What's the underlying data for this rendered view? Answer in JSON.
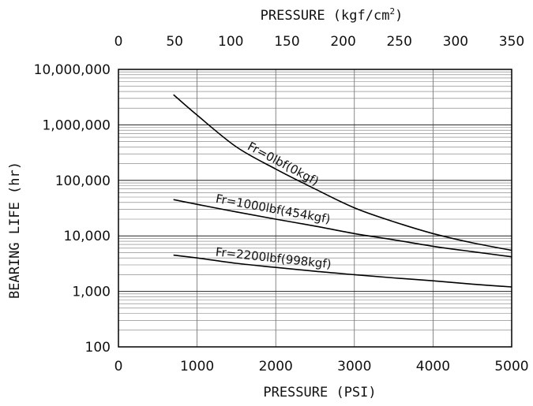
{
  "chart_data": {
    "type": "line",
    "xlabel": "PRESSURE (PSI)",
    "ylabel": "BEARING LIFE (hr)",
    "secondary_x_label": "PRESSURE (kgf/cm",
    "secondary_x_label_sup": "2",
    "secondary_x_label_close": ")",
    "xlim": [
      0,
      5000
    ],
    "ylim": [
      100,
      10000000
    ],
    "y_scale": "log",
    "grid": true,
    "x_ticks": [
      "0",
      "1000",
      "2000",
      "3000",
      "4000",
      "5000"
    ],
    "y_ticks": [
      "100",
      "1,000",
      "10,000",
      "100,000",
      "1,000,000",
      "10,000,000"
    ],
    "secondary_x_ticks": [
      "0",
      "50",
      "100",
      "150",
      "200",
      "250",
      "300",
      "350"
    ],
    "series": [
      {
        "name": "Fr=0lbf(0kgf)",
        "x": [
          700,
          1000,
          1500,
          2000,
          2500,
          3000,
          3500,
          4000,
          4500,
          5000
        ],
        "y": [
          3500000,
          1500000,
          400000,
          160000,
          70000,
          32000,
          18000,
          11000,
          7500,
          5500
        ]
      },
      {
        "name": "Fr=1000lbf(454kgf)",
        "x": [
          700,
          1000,
          1500,
          2000,
          2500,
          3000,
          3500,
          4000,
          4500,
          5000
        ],
        "y": [
          45000,
          37000,
          27000,
          20000,
          15000,
          11000,
          8500,
          6500,
          5200,
          4200
        ]
      },
      {
        "name": "Fr=2200lbf(998kgf)",
        "x": [
          700,
          1000,
          1500,
          2000,
          2500,
          3000,
          3500,
          4000,
          4500,
          5000
        ],
        "y": [
          4500,
          4000,
          3200,
          2700,
          2300,
          2000,
          1750,
          1550,
          1350,
          1200
        ]
      }
    ]
  }
}
